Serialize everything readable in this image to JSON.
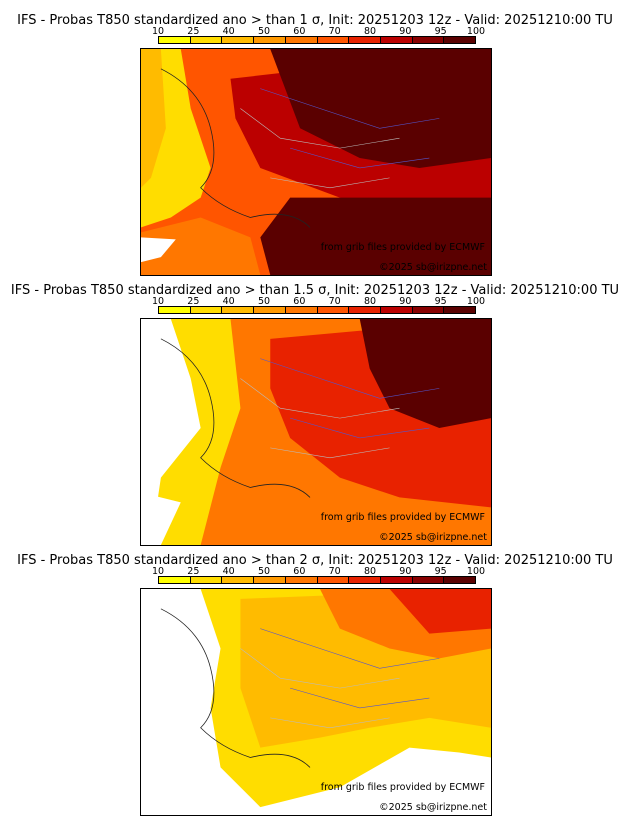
{
  "legend": {
    "levels": [
      "10",
      "25",
      "40",
      "50",
      "60",
      "70",
      "80",
      "90",
      "95",
      "100"
    ],
    "colors": [
      "#ffff00",
      "#ffdd00",
      "#ffbb00",
      "#ff9900",
      "#ff7700",
      "#ff5500",
      "#e82200",
      "#bb0000",
      "#880000",
      "#5a0000"
    ]
  },
  "panels": [
    {
      "title": "IFS - Probas T850  standardized ano > than 1 σ, Init: 20251203 12z - Valid: 20251210:00 TU",
      "threshold_sigma": "1",
      "provider_credit": "from grib files provided by ECMWF",
      "copyright": "©2025 sb@irizpne.net"
    },
    {
      "title": "IFS - Probas T850  standardized ano > than 1.5 σ, Init: 20251203 12z - Valid: 20251210:00 TU",
      "threshold_sigma": "1.5",
      "provider_credit": "from grib files provided by ECMWF",
      "copyright": "©2025 sb@irizpne.net"
    },
    {
      "title": "IFS - Probas T850  standardized ano > than 2 σ, Init: 20251203 12z - Valid: 20251210:00 TU",
      "threshold_sigma": "2",
      "provider_credit": "from grib files provided by ECMWF",
      "copyright": "©2025 sb@irizpne.net"
    }
  ]
}
